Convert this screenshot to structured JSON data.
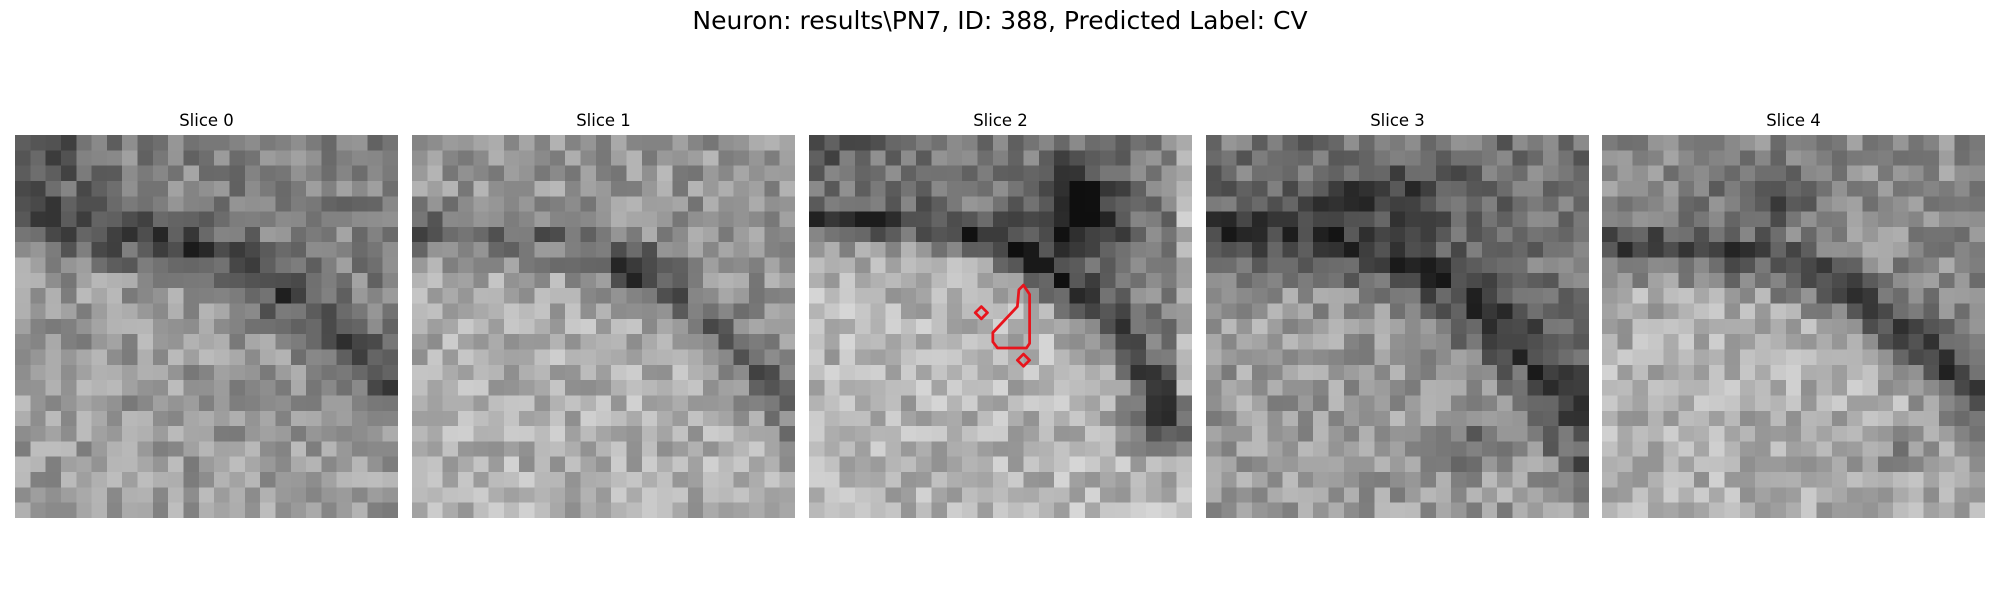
{
  "figure": {
    "title": "Neuron: results\\PN7, ID: 388, Predicted Label: CV"
  },
  "slices": [
    {
      "title": "Slice 0",
      "has_contour": false
    },
    {
      "title": "Slice 1",
      "has_contour": false
    },
    {
      "title": "Slice 2",
      "has_contour": true
    },
    {
      "title": "Slice 3",
      "has_contour": false
    },
    {
      "title": "Slice 4",
      "has_contour": false
    }
  ],
  "colors": {
    "contour": "#e8141c",
    "background": "#ffffff"
  },
  "image": {
    "grid_size": 25,
    "colormap": "gray"
  }
}
